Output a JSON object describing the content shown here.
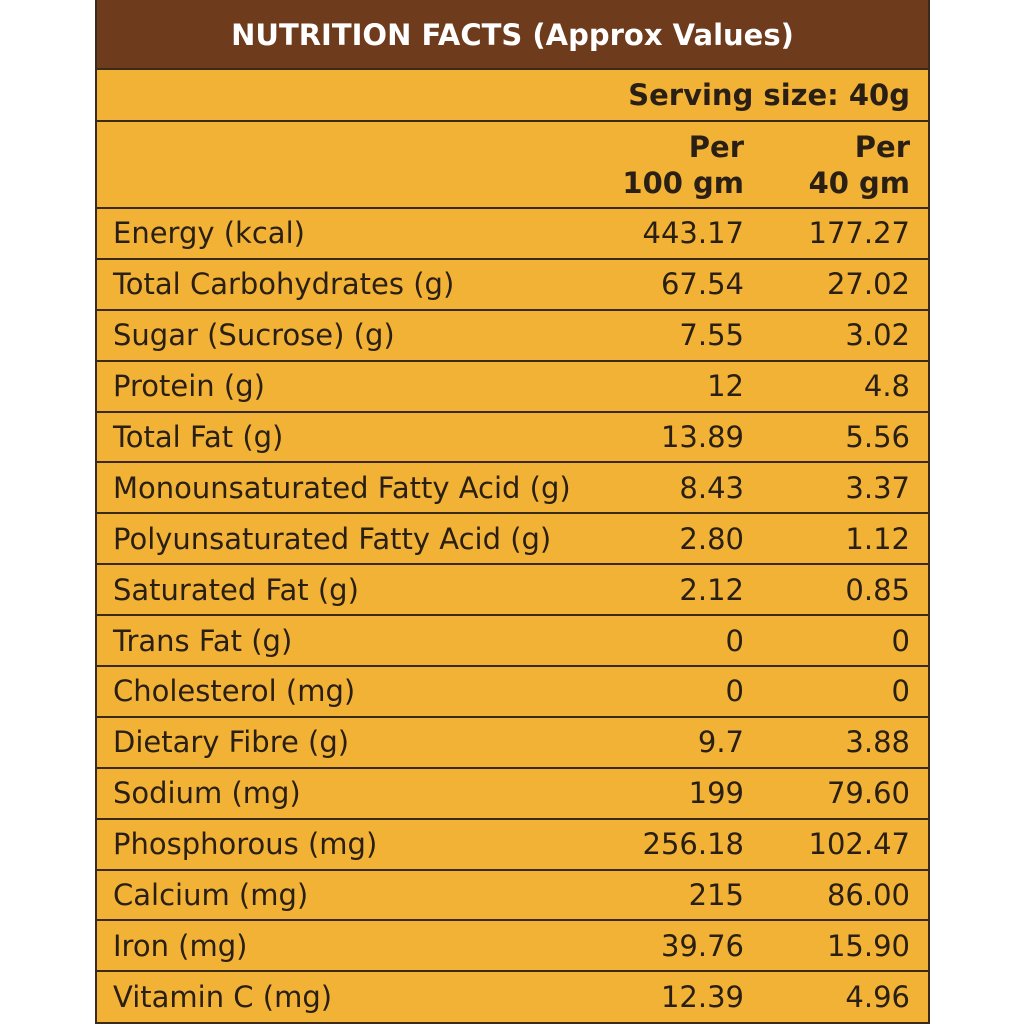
{
  "header": {
    "title": "NUTRITION FACTS (Approx Values)",
    "serving_size": "Serving size: 40g"
  },
  "table": {
    "columns": [
      [
        "Per",
        "100 gm"
      ],
      [
        "Per",
        "40 gm"
      ]
    ],
    "rows": [
      [
        "Energy (kcal)",
        "443.17",
        "177.27"
      ],
      [
        "Total Carbohydrates (g)",
        "67.54",
        "27.02"
      ],
      [
        "Sugar (Sucrose) (g)",
        "7.55",
        "3.02"
      ],
      [
        "Protein (g)",
        "12",
        "4.8"
      ],
      [
        "Total Fat (g)",
        "13.89",
        "5.56"
      ],
      [
        "Monounsaturated Fatty Acid (g)",
        "8.43",
        "3.37"
      ],
      [
        "Polyunsaturated Fatty Acid (g)",
        "2.80",
        "1.12"
      ],
      [
        "Saturated Fat (g)",
        "2.12",
        "0.85"
      ],
      [
        "Trans Fat (g)",
        "0",
        "0"
      ],
      [
        "Cholesterol (mg)",
        "0",
        "0"
      ],
      [
        "Dietary Fibre (g)",
        "9.7",
        "3.88"
      ],
      [
        "Sodium (mg)",
        "199",
        "79.60"
      ],
      [
        "Phosphorous (mg)",
        "256.18",
        "102.47"
      ],
      [
        "Calcium (mg)",
        "215",
        "86.00"
      ],
      [
        "Iron (mg)",
        "39.76",
        "15.90"
      ],
      [
        "Vitamin C (mg)",
        "12.39",
        "4.96"
      ]
    ]
  }
}
